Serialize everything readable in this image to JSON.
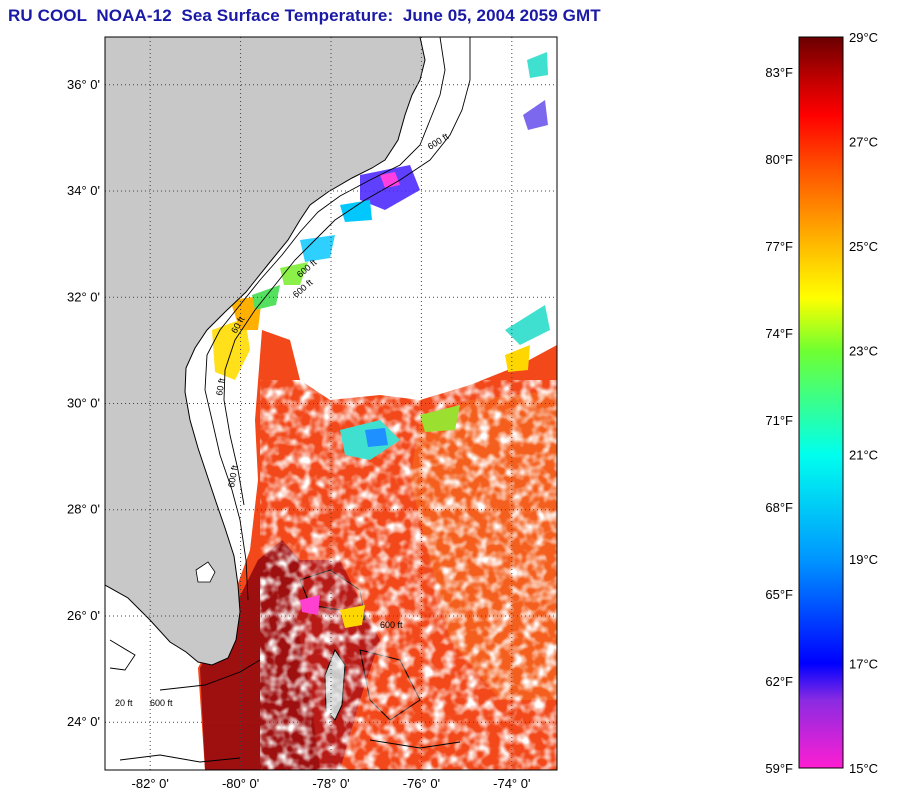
{
  "title": "RU COOL  NOAA-12  Sea Surface Temperature:  June 05, 2004 2059 GMT",
  "map": {
    "lat_labels": [
      "36° 0'",
      "34° 0'",
      "32° 0'",
      "30° 0'",
      "28° 0'",
      "26° 0'",
      "24° 0'"
    ],
    "lat_values": [
      36,
      34,
      32,
      30,
      28,
      26,
      24
    ],
    "lon_labels": [
      "-82° 0'",
      "-80° 0'",
      "-78° 0'",
      "-76° 0'",
      "-74° 0'"
    ],
    "lon_values": [
      -82,
      -80,
      -78,
      -76,
      -74
    ],
    "lat_range": [
      23.1,
      36.9
    ],
    "lon_range": [
      -83.0,
      -73.0
    ],
    "contour_labels": [
      "600 ft",
      "60 ft",
      "600 ft",
      "600 ft",
      "60 ft",
      "600 ft",
      "20 ft",
      "600 ft",
      "600 ft"
    ],
    "colors": {
      "land": "#c8c8c8",
      "cloud": "#ffffff",
      "gridline": "#444444"
    }
  },
  "colorbar": {
    "celsius_labels": [
      "29°C",
      "27°C",
      "25°C",
      "23°C",
      "21°C",
      "19°C",
      "17°C",
      "15°C"
    ],
    "celsius_values": [
      29,
      27,
      25,
      23,
      21,
      19,
      17,
      15
    ],
    "fahrenheit_labels": [
      "83°F",
      "80°F",
      "77°F",
      "74°F",
      "71°F",
      "68°F",
      "65°F",
      "62°F",
      "59°F"
    ],
    "fahrenheit_values": [
      83,
      80,
      77,
      74,
      71,
      68,
      65,
      62,
      59
    ],
    "range_c": [
      15,
      29
    ],
    "gradient_stops": [
      {
        "c": 15,
        "color": "#ff1ed2"
      },
      {
        "c": 16.3,
        "color": "#8a2be2"
      },
      {
        "c": 17,
        "color": "#0000ff"
      },
      {
        "c": 19,
        "color": "#0096ff"
      },
      {
        "c": 21,
        "color": "#00ffee"
      },
      {
        "c": 23,
        "color": "#70ff30"
      },
      {
        "c": 24,
        "color": "#ffff00"
      },
      {
        "c": 25,
        "color": "#ffbb00"
      },
      {
        "c": 26.5,
        "color": "#ff5000"
      },
      {
        "c": 27.5,
        "color": "#ff0000"
      },
      {
        "c": 28.2,
        "color": "#c00000"
      },
      {
        "c": 29,
        "color": "#6a0000"
      }
    ]
  }
}
